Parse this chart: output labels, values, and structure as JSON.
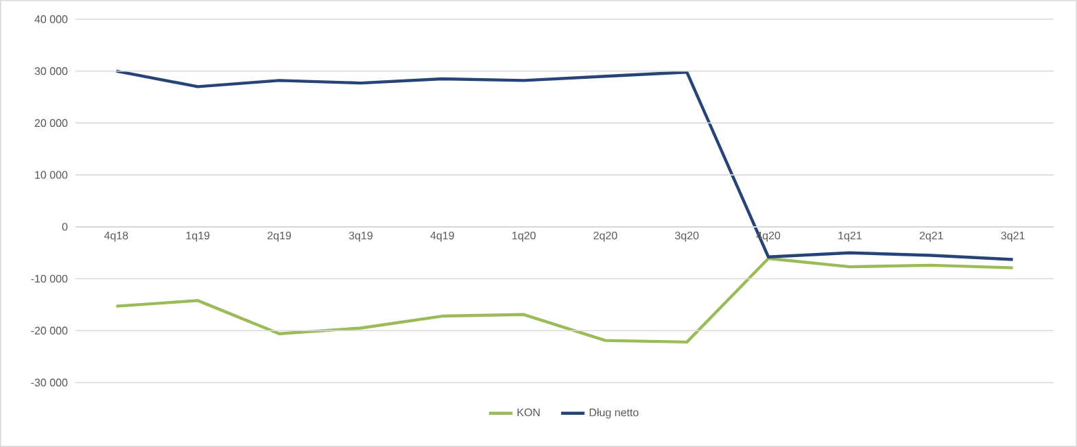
{
  "chart_data": {
    "type": "line",
    "categories": [
      "4q18",
      "1q19",
      "2q19",
      "3q19",
      "4q19",
      "1q20",
      "2q20",
      "3q20",
      "4q20",
      "1q21",
      "2q21",
      "3q21"
    ],
    "series": [
      {
        "name": "KON",
        "color": "#9bbb59",
        "values": [
          -15300,
          -14200,
          -20600,
          -19500,
          -17200,
          -16900,
          -21900,
          -22200,
          -6100,
          -7700,
          -7400,
          -7900
        ]
      },
      {
        "name": "Dług netto",
        "color": "#264478",
        "values": [
          30000,
          27000,
          28200,
          27700,
          28500,
          28200,
          29000,
          29800,
          -5800,
          -5000,
          -5500,
          -6300
        ]
      }
    ],
    "ylim": [
      -30000,
      40000
    ],
    "yticks": [
      {
        "value": -30000,
        "label": "-30 000"
      },
      {
        "value": -20000,
        "label": "-20 000"
      },
      {
        "value": -10000,
        "label": "-10 000"
      },
      {
        "value": 0,
        "label": "0"
      },
      {
        "value": 10000,
        "label": "10 000"
      },
      {
        "value": 20000,
        "label": "20 000"
      },
      {
        "value": 30000,
        "label": "30 000"
      },
      {
        "value": 40000,
        "label": "40 000"
      }
    ],
    "grid": "y",
    "legend": "bottom",
    "marker": "none",
    "line_style": "solid"
  }
}
